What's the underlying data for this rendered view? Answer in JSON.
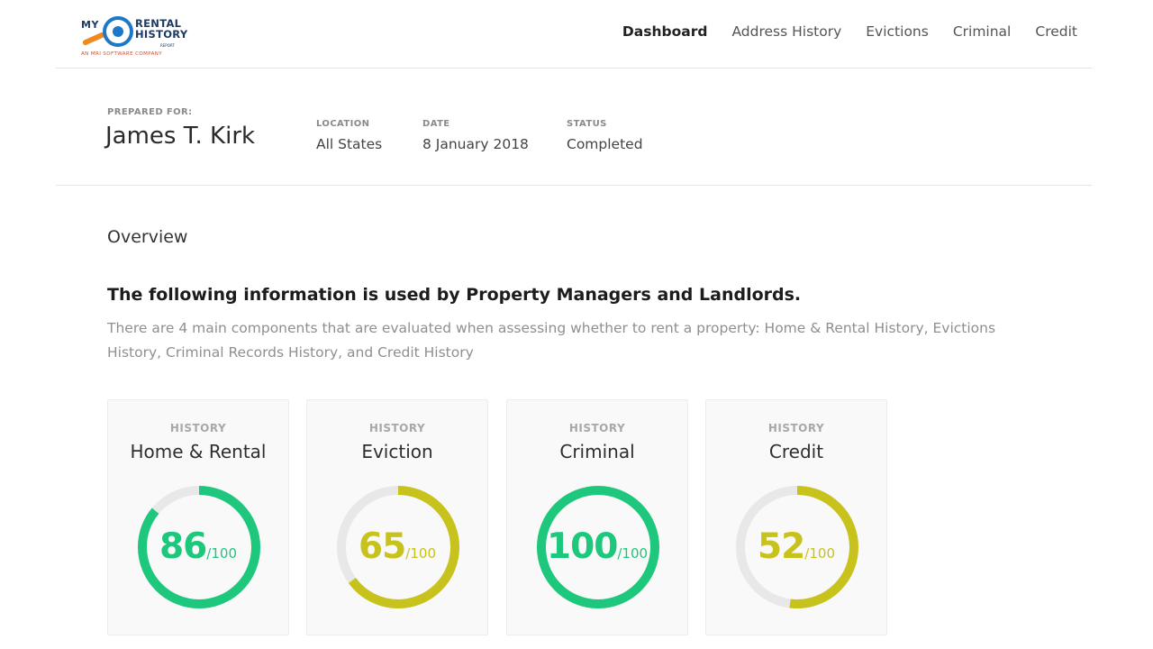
{
  "brand": {
    "word_my": "MY",
    "word_rental": "RENTAL",
    "word_history": "HISTORY",
    "word_report": "REPORT",
    "tagline": "AN MRI SOFTWARE COMPANY"
  },
  "nav": {
    "items": [
      {
        "label": "Dashboard",
        "active": true
      },
      {
        "label": "Address History",
        "active": false
      },
      {
        "label": "Evictions",
        "active": false
      },
      {
        "label": "Criminal",
        "active": false
      },
      {
        "label": "Credit",
        "active": false
      }
    ]
  },
  "report": {
    "prepared_for_label": "PREPARED FOR:",
    "prepared_for": "James T. Kirk",
    "location_label": "LOCATION",
    "location": "All States",
    "date_label": "DATE",
    "date": "8 January 2018",
    "status_label": "STATUS",
    "status": "Completed"
  },
  "overview": {
    "title": "Overview",
    "lead": "The following information is used by Property Managers and Landlords.",
    "description": "There are 4 main components that are evaluated when assessing whether to rent a property: Home & Rental History, Evictions History, Criminal Records History, and Credit History"
  },
  "colors": {
    "good": "#1dc77b",
    "fair": "#c8c21c",
    "track": "#e8e8e8"
  },
  "cards": [
    {
      "caption": "HISTORY",
      "title": "Home & Rental",
      "score": "86",
      "max": "/100",
      "color": "#1dc77b"
    },
    {
      "caption": "HISTORY",
      "title": "Eviction",
      "score": "65",
      "max": "/100",
      "color": "#c8c21c"
    },
    {
      "caption": "HISTORY",
      "title": "Criminal",
      "score": "100",
      "max": "/100",
      "color": "#1dc77b"
    },
    {
      "caption": "HISTORY",
      "title": "Credit",
      "score": "52",
      "max": "/100",
      "color": "#c8c21c"
    }
  ]
}
